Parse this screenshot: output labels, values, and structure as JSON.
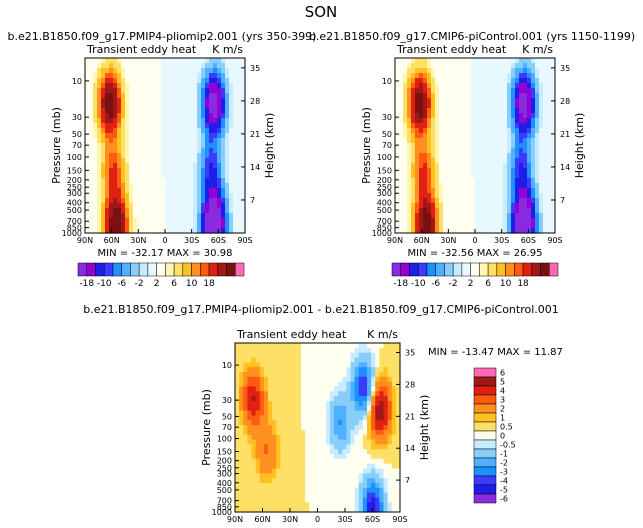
{
  "suptitle": "SON",
  "colors": {
    "top": [
      "#8a2be2",
      "#9400d3",
      "#1e1ee6",
      "#3b3bff",
      "#1e90ff",
      "#4fb0ff",
      "#87cefa",
      "#c8ecff",
      "#e8f8ff",
      "#fffff0",
      "#fff6b0",
      "#ffe066",
      "#ffc020",
      "#ff9020",
      "#ff5a10",
      "#e02010",
      "#a01818",
      "#7a1010",
      "#ff69b4"
    ],
    "diff": [
      "#8a2be2",
      "#1e1ee6",
      "#3b3bff",
      "#1e90ff",
      "#4fb0ff",
      "#87cefa",
      "#c8ecff",
      "#fffff0",
      "#ffe066",
      "#ffc020",
      "#ff9020",
      "#ff5a10",
      "#e02010",
      "#a01818",
      "#ff69b4"
    ]
  },
  "chart_data": [
    {
      "type": "heatmap",
      "title": "b.e21.B1850.f09_g17.PMIP4-pliomip2.001 (yrs 350-399)",
      "left_label": "Transient eddy heat",
      "right_label": "K m/s",
      "ylabel": "Pressure (mb)",
      "ylabel2": "Height (km)",
      "xticks": [
        "90N",
        "60N",
        "30N",
        "0",
        "30S",
        "60S",
        "90S"
      ],
      "yticks": [
        "10",
        "30",
        "50",
        "70",
        "100",
        "150",
        "200",
        "250",
        "300",
        "400",
        "500",
        "700",
        "850",
        "1000"
      ],
      "height_ticks": [
        "35",
        "28",
        "21",
        "14",
        "7"
      ],
      "min_max": "MIN = -32.17   MAX =  30.98",
      "levels": [
        -18,
        -14,
        -10,
        -8,
        -6,
        -4,
        -2,
        -1,
        0,
        1,
        2,
        4,
        6,
        8,
        10,
        14,
        18
      ],
      "colorbar_labels": [
        "-18",
        "-10",
        "-6",
        "-2",
        "2",
        "6",
        "10",
        "18"
      ],
      "features": [
        {
          "lat": 62,
          "p": 20,
          "value": 22
        },
        {
          "lat": 58,
          "p": 150,
          "value": 10
        },
        {
          "lat": 55,
          "p": 800,
          "value": 24
        },
        {
          "lat": -55,
          "p": 20,
          "value": -22
        },
        {
          "lat": -52,
          "p": 150,
          "value": -10
        },
        {
          "lat": -55,
          "p": 750,
          "value": -30
        }
      ]
    },
    {
      "type": "heatmap",
      "title": "b.e21.B1850.f09_g17.CMIP6-piControl.001 (yrs 1150-1199)",
      "left_label": "Transient eddy heat",
      "right_label": "K m/s",
      "ylabel": "Pressure (mb)",
      "ylabel2": "Height (km)",
      "xticks": [
        "90N",
        "60N",
        "30N",
        "0",
        "30S",
        "60S",
        "90S"
      ],
      "yticks": [
        "10",
        "30",
        "50",
        "70",
        "100",
        "150",
        "200",
        "250",
        "300",
        "400",
        "500",
        "700",
        "850",
        "1000"
      ],
      "height_ticks": [
        "35",
        "28",
        "21",
        "14",
        "7"
      ],
      "min_max": "MIN = -32.56   MAX =  26.95",
      "levels": [
        -18,
        -14,
        -10,
        -8,
        -6,
        -4,
        -2,
        -1,
        0,
        1,
        2,
        4,
        6,
        8,
        10,
        14,
        18
      ],
      "colorbar_labels": [
        "-18",
        "-10",
        "-6",
        "-2",
        "2",
        "6",
        "10",
        "18"
      ],
      "features": [
        {
          "lat": 62,
          "p": 20,
          "value": 21
        },
        {
          "lat": 58,
          "p": 150,
          "value": 10
        },
        {
          "lat": 55,
          "p": 800,
          "value": 22
        },
        {
          "lat": -55,
          "p": 20,
          "value": -22
        },
        {
          "lat": -52,
          "p": 150,
          "value": -10
        },
        {
          "lat": -55,
          "p": 750,
          "value": -30
        }
      ]
    },
    {
      "type": "heatmap",
      "title": "b.e21.B1850.f09_g17.PMIP4-pliomip2.001 - b.e21.B1850.f09_g17.CMIP6-piControl.001",
      "left_label": "Transient eddy heat",
      "right_label": "K m/s",
      "ylabel": "Pressure (mb)",
      "ylabel2": "Height (km)",
      "xticks": [
        "90N",
        "60N",
        "30N",
        "0",
        "30S",
        "60S",
        "90S"
      ],
      "yticks": [
        "10",
        "30",
        "50",
        "70",
        "100",
        "150",
        "200",
        "250",
        "300",
        "400",
        "500",
        "700",
        "850",
        "1000"
      ],
      "height_ticks": [
        "35",
        "28",
        "21",
        "14",
        "7"
      ],
      "min_max": "MIN = -13.47   MAX =  11.87",
      "levels": [
        -6,
        -5,
        -4,
        -3,
        -2,
        -1,
        -0.5,
        0,
        0.5,
        1,
        2,
        3,
        4,
        5,
        6
      ],
      "colorbar_labels": [
        "6",
        "5",
        "4",
        "3",
        "2",
        "1",
        "0.5",
        "0",
        "-0.5",
        "-1",
        "-2",
        "-3",
        "-4",
        "-5",
        "-6"
      ],
      "features": [
        {
          "lat": 70,
          "p": 30,
          "value": 4
        },
        {
          "lat": 55,
          "p": 150,
          "value": 2
        },
        {
          "lat": -25,
          "p": 60,
          "value": -3
        },
        {
          "lat": -50,
          "p": 20,
          "value": -5
        },
        {
          "lat": -68,
          "p": 40,
          "value": 5
        },
        {
          "lat": -60,
          "p": 900,
          "value": -6
        }
      ]
    }
  ]
}
